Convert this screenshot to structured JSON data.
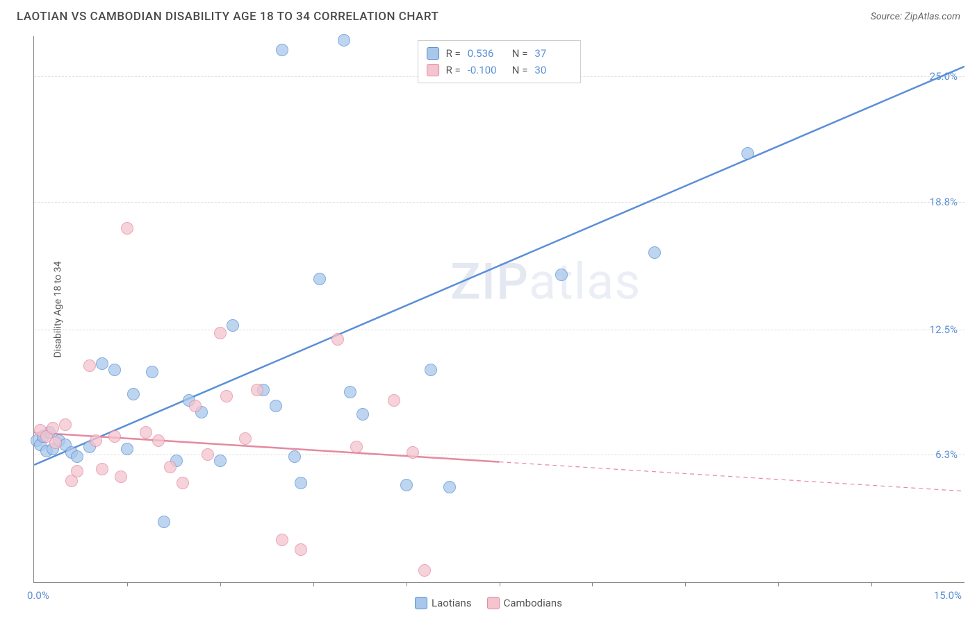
{
  "header": {
    "title": "LAOTIAN VS CAMBODIAN DISABILITY AGE 18 TO 34 CORRELATION CHART",
    "source": "Source: ZipAtlas.com"
  },
  "chart": {
    "type": "scatter",
    "y_axis_label": "Disability Age 18 to 34",
    "xlim": [
      0,
      15
    ],
    "ylim": [
      0,
      27
    ],
    "x_origin_label": "0.0%",
    "x_end_label": "15.0%",
    "y_ticks": [
      {
        "v": 6.3,
        "label": "6.3%"
      },
      {
        "v": 12.5,
        "label": "12.5%"
      },
      {
        "v": 18.8,
        "label": "18.8%"
      },
      {
        "v": 25.0,
        "label": "25.0%"
      }
    ],
    "x_tick_positions": [
      1.5,
      3.0,
      4.5,
      6.0,
      7.5,
      9.0,
      10.5,
      12.0,
      13.5
    ],
    "grid_color": "#dddddd",
    "axis_color": "#888888",
    "background_color": "#ffffff",
    "label_color": "#555555",
    "tick_label_color": "#5a8fd6",
    "point_radius": 9,
    "point_border_width": 1.5,
    "point_fill_opacity": 0.35,
    "watermark": "ZIPatlas",
    "series": [
      {
        "name": "Laotians",
        "color_fill": "#a9c7ea",
        "color_stroke": "#5a8fd6",
        "trend": {
          "x1": 0,
          "y1": 5.8,
          "x2": 15,
          "y2": 25.5,
          "solid_until_x": 15,
          "width": 2.5
        },
        "points": [
          [
            0.05,
            7.0
          ],
          [
            0.1,
            6.8
          ],
          [
            0.15,
            7.2
          ],
          [
            0.2,
            6.5
          ],
          [
            0.25,
            7.4
          ],
          [
            0.3,
            6.6
          ],
          [
            0.4,
            7.0
          ],
          [
            0.5,
            6.8
          ],
          [
            0.6,
            6.4
          ],
          [
            0.7,
            6.2
          ],
          [
            0.9,
            6.7
          ],
          [
            1.1,
            10.8
          ],
          [
            1.3,
            10.5
          ],
          [
            1.5,
            6.6
          ],
          [
            1.6,
            9.3
          ],
          [
            1.9,
            10.4
          ],
          [
            2.1,
            3.0
          ],
          [
            2.3,
            6.0
          ],
          [
            2.5,
            9.0
          ],
          [
            2.7,
            8.4
          ],
          [
            3.0,
            6.0
          ],
          [
            3.2,
            12.7
          ],
          [
            3.7,
            9.5
          ],
          [
            3.9,
            8.7
          ],
          [
            4.0,
            26.3
          ],
          [
            4.2,
            6.2
          ],
          [
            4.3,
            4.9
          ],
          [
            4.6,
            15.0
          ],
          [
            5.0,
            26.8
          ],
          [
            5.1,
            9.4
          ],
          [
            5.3,
            8.3
          ],
          [
            6.0,
            4.8
          ],
          [
            6.4,
            10.5
          ],
          [
            6.7,
            4.7
          ],
          [
            8.5,
            15.2
          ],
          [
            10.0,
            16.3
          ],
          [
            11.5,
            21.2
          ]
        ]
      },
      {
        "name": "Cambodians",
        "color_fill": "#f4c4cf",
        "color_stroke": "#e48aa0",
        "trend": {
          "x1": 0,
          "y1": 7.4,
          "x2": 15,
          "y2": 4.5,
          "solid_until_x": 7.5,
          "width": 2.5
        },
        "points": [
          [
            0.1,
            7.5
          ],
          [
            0.2,
            7.2
          ],
          [
            0.3,
            7.6
          ],
          [
            0.35,
            6.9
          ],
          [
            0.5,
            7.8
          ],
          [
            0.6,
            5.0
          ],
          [
            0.7,
            5.5
          ],
          [
            0.9,
            10.7
          ],
          [
            1.0,
            7.0
          ],
          [
            1.1,
            5.6
          ],
          [
            1.3,
            7.2
          ],
          [
            1.4,
            5.2
          ],
          [
            1.5,
            17.5
          ],
          [
            1.8,
            7.4
          ],
          [
            2.0,
            7.0
          ],
          [
            2.2,
            5.7
          ],
          [
            2.4,
            4.9
          ],
          [
            2.6,
            8.7
          ],
          [
            2.8,
            6.3
          ],
          [
            3.0,
            12.3
          ],
          [
            3.1,
            9.2
          ],
          [
            3.4,
            7.1
          ],
          [
            3.6,
            9.5
          ],
          [
            4.0,
            2.1
          ],
          [
            4.3,
            1.6
          ],
          [
            4.9,
            12.0
          ],
          [
            5.2,
            6.7
          ],
          [
            5.8,
            9.0
          ],
          [
            6.1,
            6.4
          ],
          [
            6.3,
            0.6
          ]
        ]
      }
    ],
    "legend_top": [
      {
        "swatch_fill": "#a9c7ea",
        "swatch_stroke": "#5a8fd6",
        "r_label": "R =",
        "r_val": "0.536",
        "n_label": "N =",
        "n_val": "37"
      },
      {
        "swatch_fill": "#f4c4cf",
        "swatch_stroke": "#e48aa0",
        "r_label": "R =",
        "r_val": "-0.100",
        "n_label": "N =",
        "n_val": "30"
      }
    ],
    "legend_bottom": [
      {
        "swatch_fill": "#a9c7ea",
        "swatch_stroke": "#5a8fd6",
        "label": "Laotians"
      },
      {
        "swatch_fill": "#f4c4cf",
        "swatch_stroke": "#e48aa0",
        "label": "Cambodians"
      }
    ]
  }
}
